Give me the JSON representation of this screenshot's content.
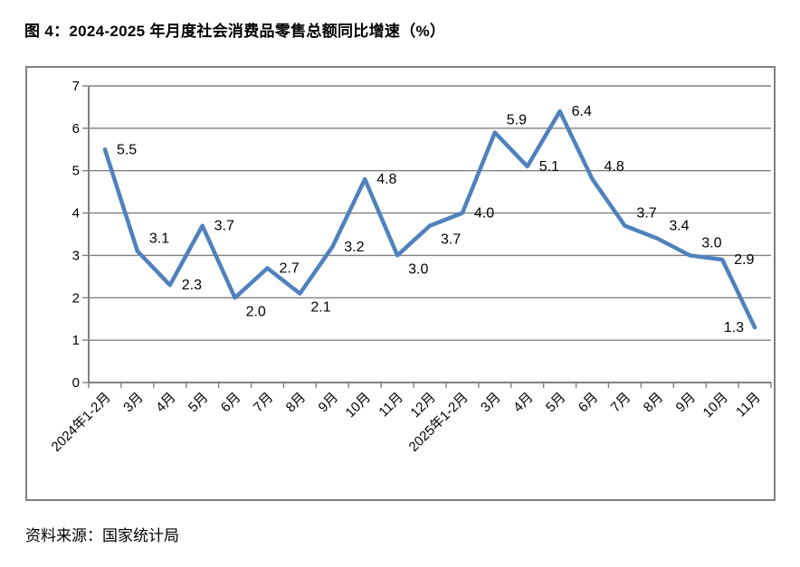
{
  "chart_data": {
    "type": "line",
    "title": "图 4：2024-2025 年月度社会消费品零售总额同比增速（%）",
    "source": "资料来源：国家统计局",
    "categories": [
      "2024年1-2月",
      "3月",
      "4月",
      "5月",
      "6月",
      "7月",
      "8月",
      "9月",
      "10月",
      "11月",
      "12月",
      "2025年1-2月",
      "3月",
      "4月",
      "5月",
      "6月",
      "7月",
      "8月",
      "9月",
      "10月",
      "11月"
    ],
    "series": [
      {
        "name": "社会消费品零售总额同比增速",
        "values": [
          5.5,
          3.1,
          2.3,
          3.7,
          2.0,
          2.7,
          2.1,
          3.2,
          4.8,
          3.0,
          3.7,
          4.0,
          5.9,
          5.1,
          6.4,
          4.8,
          3.7,
          3.4,
          3.0,
          2.9,
          1.3
        ]
      }
    ],
    "value_label_decimals": 1,
    "label_pos": [
      "right",
      "above",
      "right",
      "right",
      "below",
      "right",
      "below",
      "right",
      "right",
      "below",
      "below",
      "right",
      "above",
      "right",
      "right",
      "above",
      "above",
      "above",
      "above",
      "right",
      "left"
    ],
    "xlabel": "",
    "ylabel": "",
    "ylim": [
      0,
      7
    ],
    "yticks": [
      0,
      1,
      2,
      3,
      4,
      5,
      6,
      7
    ],
    "grid": true,
    "legend_position": "none",
    "x_label_rotation_deg": 45,
    "line_color": "#4F81BD",
    "grid_color": "#808080",
    "axis_color": "#808080",
    "text_color": "#000000"
  }
}
